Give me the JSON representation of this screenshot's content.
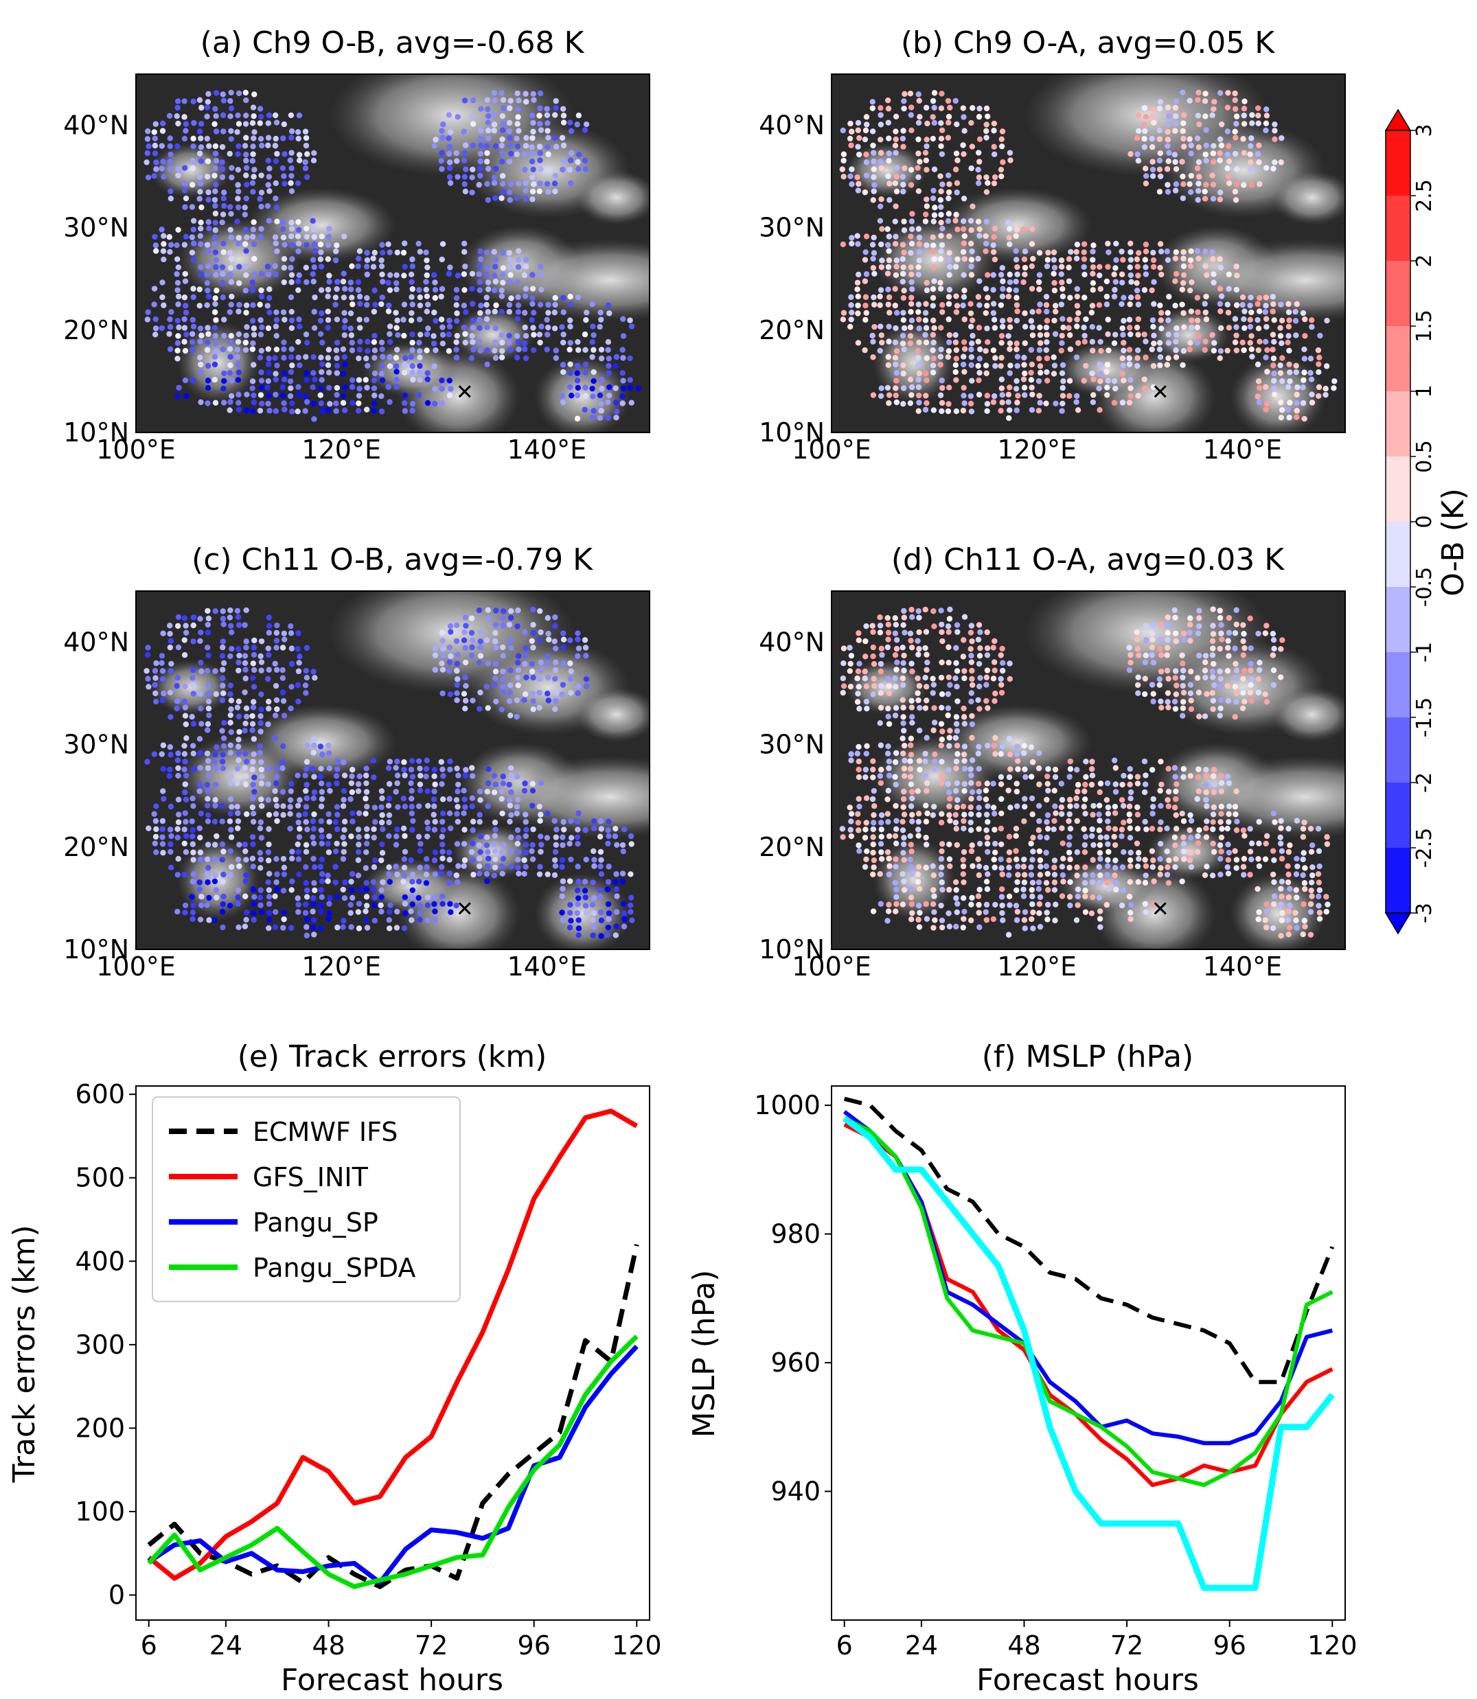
{
  "chart_data": [
    {
      "type": "scatter",
      "panel": "a",
      "title": "(a) Ch9 O-B, avg=-0.68 K",
      "xticks": [
        "100°E",
        "120°E",
        "140°E"
      ],
      "yticks": [
        "10°N",
        "20°N",
        "30°N",
        "40°N"
      ],
      "xlim": [
        100,
        150
      ],
      "ylim": [
        10,
        45
      ],
      "bias": -0.68,
      "storm_marker": [
        132,
        14
      ]
    },
    {
      "type": "scatter",
      "panel": "b",
      "title": "(b) Ch9 O-A, avg=0.05 K",
      "xticks": [
        "100°E",
        "120°E",
        "140°E"
      ],
      "yticks": [
        "10°N",
        "20°N",
        "30°N",
        "40°N"
      ],
      "xlim": [
        100,
        150
      ],
      "ylim": [
        10,
        45
      ],
      "bias": 0.05,
      "storm_marker": [
        132,
        14
      ]
    },
    {
      "type": "scatter",
      "panel": "c",
      "title": "(c) Ch11 O-B, avg=-0.79 K",
      "xticks": [
        "100°E",
        "120°E",
        "140°E"
      ],
      "yticks": [
        "10°N",
        "20°N",
        "30°N",
        "40°N"
      ],
      "xlim": [
        100,
        150
      ],
      "ylim": [
        10,
        45
      ],
      "bias": -0.79,
      "storm_marker": [
        132,
        14
      ]
    },
    {
      "type": "scatter",
      "panel": "d",
      "title": "(d) Ch11 O-A, avg=0.03 K",
      "xticks": [
        "100°E",
        "120°E",
        "140°E"
      ],
      "yticks": [
        "10°N",
        "20°N",
        "30°N",
        "40°N"
      ],
      "xlim": [
        100,
        150
      ],
      "ylim": [
        10,
        45
      ],
      "bias": 0.03,
      "storm_marker": [
        132,
        14
      ]
    },
    {
      "type": "line",
      "panel": "e",
      "title": "(e) Track errors (km)",
      "xlabel": "Forecast hours",
      "ylabel": "Track errors (km)",
      "xlim": [
        3,
        123
      ],
      "ylim": [
        -30,
        610
      ],
      "xticks": [
        6,
        24,
        48,
        72,
        96,
        120
      ],
      "yticks": [
        0,
        100,
        200,
        300,
        400,
        500,
        600
      ],
      "x": [
        6,
        12,
        18,
        24,
        30,
        36,
        42,
        48,
        54,
        60,
        66,
        72,
        78,
        84,
        90,
        96,
        102,
        108,
        114,
        120
      ],
      "series": [
        {
          "name": "ECMWF IFS",
          "color": "#000000",
          "dash": true,
          "values": [
            60,
            85,
            50,
            40,
            25,
            35,
            15,
            45,
            25,
            10,
            30,
            35,
            20,
            110,
            145,
            170,
            195,
            305,
            280,
            420
          ]
        },
        {
          "name": "GFS_INIT",
          "color": "#ff0000",
          "dash": false,
          "values": [
            45,
            20,
            38,
            70,
            88,
            110,
            165,
            148,
            110,
            118,
            165,
            190,
            255,
            315,
            390,
            475,
            525,
            572,
            580,
            562
          ]
        },
        {
          "name": "Pangu_SP",
          "color": "#0000ff",
          "dash": false,
          "values": [
            40,
            60,
            65,
            40,
            50,
            30,
            28,
            35,
            38,
            15,
            55,
            78,
            75,
            68,
            80,
            155,
            165,
            225,
            265,
            298
          ]
        },
        {
          "name": "Pangu_SPDA",
          "color": "#00e000",
          "dash": false,
          "values": [
            38,
            72,
            30,
            45,
            60,
            80,
            52,
            25,
            10,
            18,
            25,
            35,
            45,
            48,
            105,
            150,
            180,
            240,
            280,
            310
          ]
        }
      ]
    },
    {
      "type": "line",
      "panel": "f",
      "title": "(f) MSLP (hPa)",
      "xlabel": "Forecast hours",
      "ylabel": "MSLP (hPa)",
      "xlim": [
        3,
        123
      ],
      "ylim": [
        920,
        1003
      ],
      "xticks": [
        6,
        24,
        48,
        72,
        96,
        120
      ],
      "yticks": [
        940,
        960,
        980,
        1000
      ],
      "x": [
        6,
        12,
        18,
        24,
        30,
        36,
        42,
        48,
        54,
        60,
        66,
        72,
        78,
        84,
        90,
        96,
        102,
        108,
        114,
        120
      ],
      "series": [
        {
          "name": "ECMWF IFS",
          "color": "#000000",
          "dash": true,
          "width": 6,
          "values": [
            1001,
            1000,
            996,
            993,
            987,
            985,
            980,
            978,
            974,
            973,
            970,
            969,
            967,
            966,
            965,
            963,
            957,
            957,
            968,
            978
          ]
        },
        {
          "name": "GFS_INIT",
          "color": "#ff0000",
          "dash": false,
          "width": 6,
          "values": [
            997,
            995,
            992,
            985,
            973,
            971,
            965,
            962,
            955,
            952,
            948,
            945,
            941,
            942,
            944,
            943,
            944,
            952,
            957,
            959
          ]
        },
        {
          "name": "Pangu_SP",
          "color": "#0000ff",
          "dash": false,
          "width": 6,
          "values": [
            999,
            996,
            992,
            985,
            971,
            969,
            966,
            963,
            957,
            954,
            950,
            951,
            949,
            948.5,
            947.5,
            947.5,
            949,
            954,
            964,
            965
          ]
        },
        {
          "name": "Pangu_SPDA",
          "color": "#00e000",
          "dash": false,
          "width": 6,
          "values": [
            998,
            996,
            992,
            984,
            970,
            965,
            964,
            963,
            954,
            952,
            950,
            947,
            943,
            942,
            941,
            943,
            946,
            952,
            969,
            971
          ]
        },
        {
          "name": "",
          "color": "#00ffff",
          "dash": false,
          "width": 9,
          "values": [
            998,
            995,
            990,
            990,
            985,
            980,
            975,
            965,
            950,
            940,
            935,
            935,
            935,
            935,
            925,
            925,
            925,
            950,
            950,
            955
          ]
        }
      ]
    },
    {
      "type": "colorbar",
      "label": "O-B (K)",
      "ticks": [
        "-3",
        "-2.5",
        "-2",
        "-1.5",
        "-1",
        "-0.5",
        "0",
        "0.5",
        "1",
        "1.5",
        "2",
        "2.5",
        "3"
      ],
      "range": [
        -3,
        3
      ]
    }
  ]
}
